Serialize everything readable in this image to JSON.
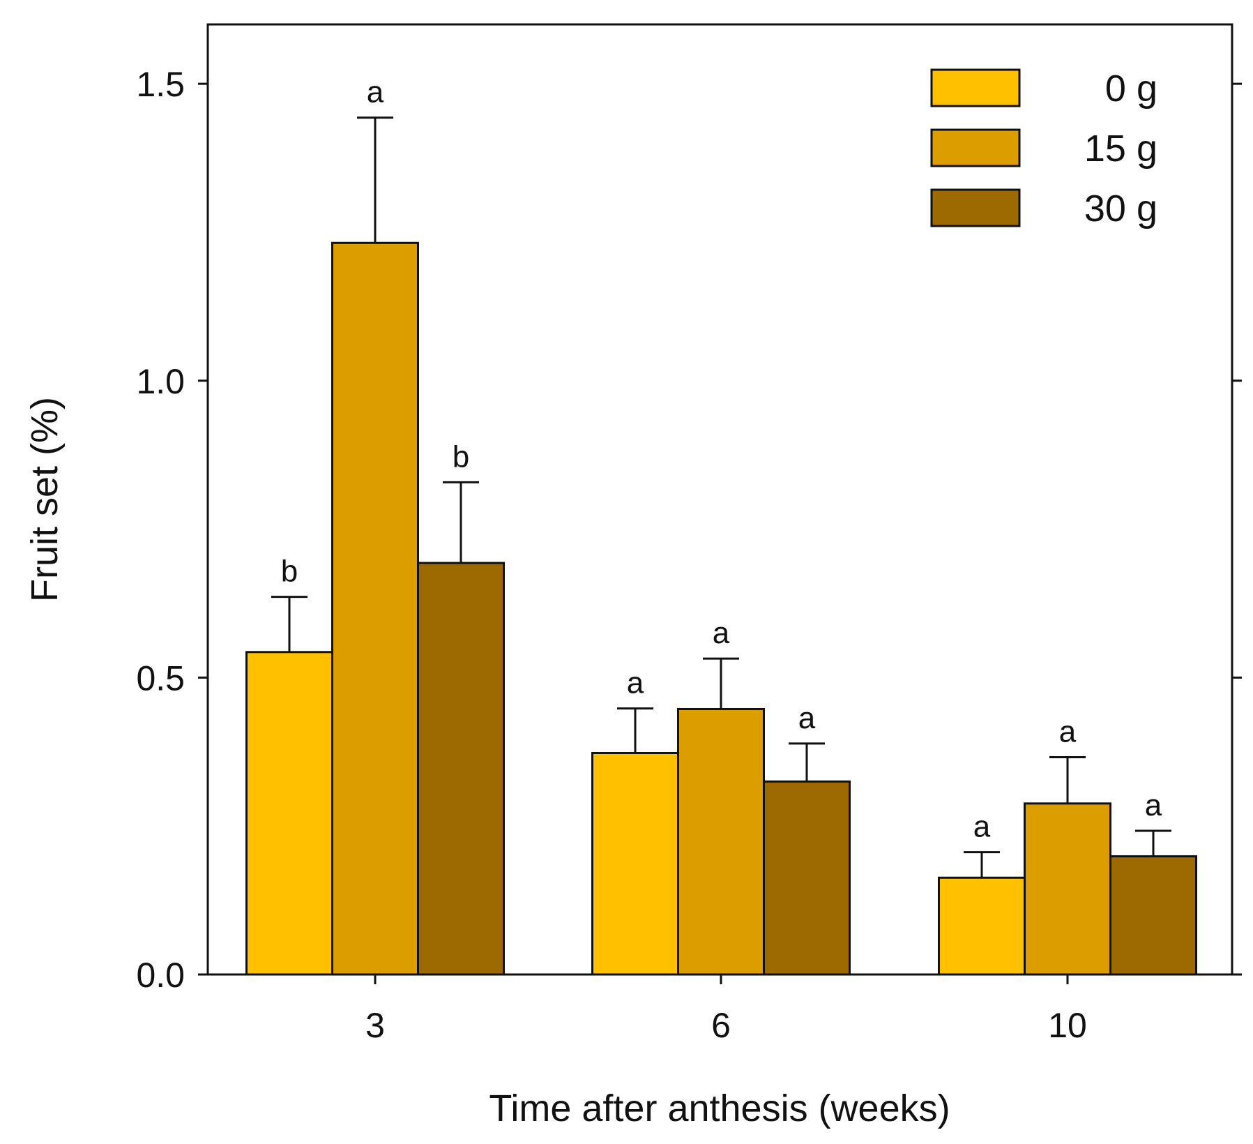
{
  "chart_data": {
    "type": "bar",
    "title": "",
    "xlabel": "Time after anthesis (weeks)",
    "ylabel": "Fruit set (%)",
    "ylim": [
      0,
      1.6
    ],
    "yticks": [
      "0.0",
      "0.5",
      "1.0",
      "1.5"
    ],
    "ytick_values": [
      0,
      0.5,
      1.0,
      1.5
    ],
    "categories": [
      "3",
      "6",
      "10"
    ],
    "legend_position": "top-right",
    "series": [
      {
        "name": "0 g",
        "color": "#FFC000",
        "values": [
          0.543,
          0.373,
          0.163
        ],
        "errors": [
          0.093,
          0.075,
          0.043
        ],
        "labels": [
          "b",
          "a",
          "a"
        ]
      },
      {
        "name": "15 g",
        "color": "#DB9D00",
        "values": [
          1.232,
          0.447,
          0.288
        ],
        "errors": [
          0.211,
          0.085,
          0.078
        ],
        "labels": [
          "a",
          "a",
          "a"
        ]
      },
      {
        "name": "30 g",
        "color": "#9C6A00",
        "values": [
          0.693,
          0.325,
          0.199
        ],
        "errors": [
          0.136,
          0.064,
          0.043
        ],
        "labels": [
          "b",
          "a",
          "a"
        ]
      }
    ]
  }
}
